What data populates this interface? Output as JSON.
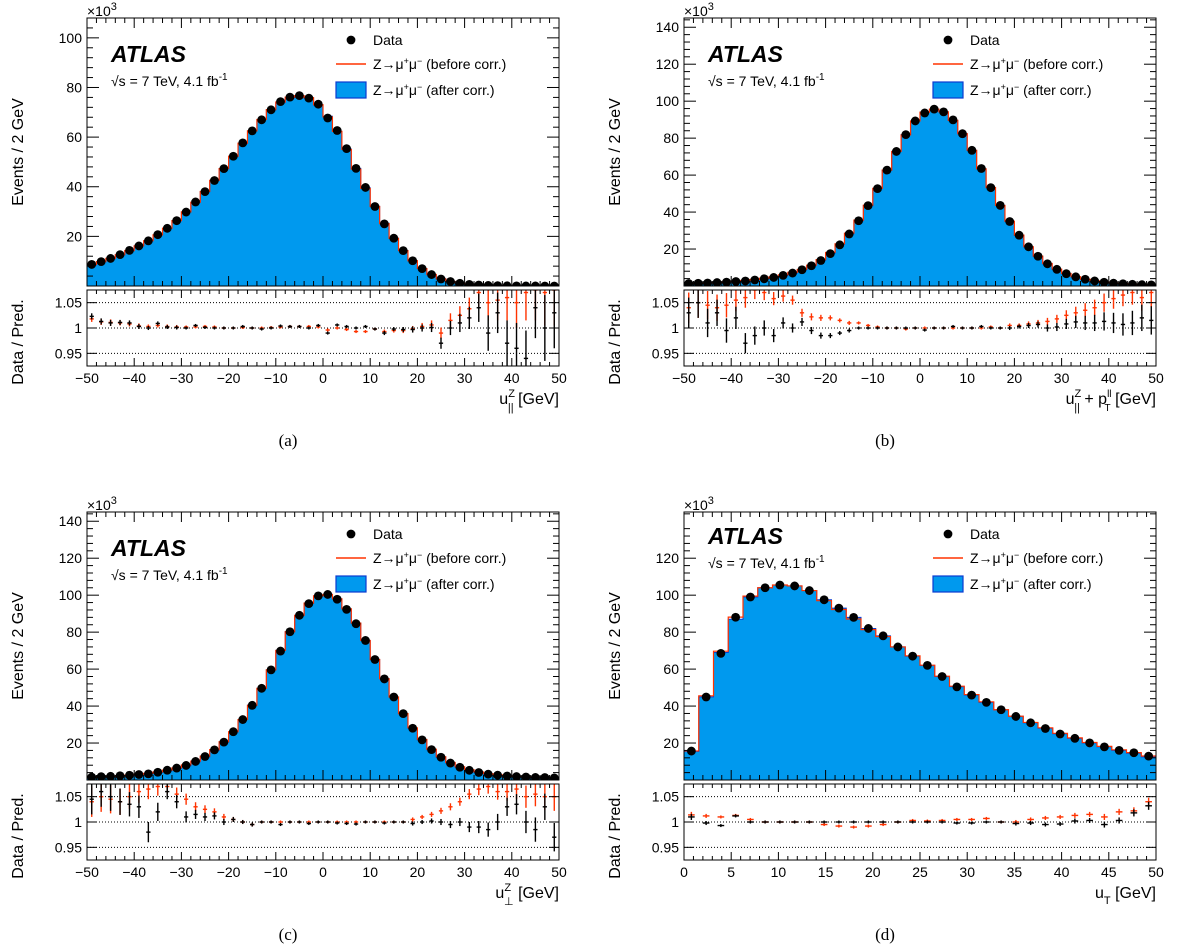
{
  "colors": {
    "fill": "#0099ee",
    "fill_edge": "#0b3bd0",
    "before_line": "#ff3300",
    "before_ratio": "#ff3300",
    "data": "#000000"
  },
  "common": {
    "multiplier_base": "×10",
    "multiplier_exp": "3",
    "ylabel": "Events / 2 GeV",
    "ratio_ylabel": "Data / Pred.",
    "atlas": "ATLAS",
    "sqrt": "√s",
    "energy": " = 7 TeV, 4.1 fb",
    "lumi_exp": "-1",
    "legend": {
      "data": "Data",
      "z_mumu": "Z→μ",
      "sup_plus": "+",
      "mu": "μ",
      "sup_minus": "−",
      "before": " (before corr.)",
      "after": " (after corr.)"
    },
    "ratio_ticks": [
      "1.05",
      "1",
      "0.95"
    ]
  },
  "chart_data": [
    {
      "type": "bar",
      "panel": "a",
      "caption": "(a)",
      "xlabel_main": "u",
      "xlabel_sup": "Z",
      "xlabel_sub": "||",
      "xlabel_unit": " [GeV]",
      "xlim": [
        -50,
        50
      ],
      "ylim": [
        0,
        108
      ],
      "yticks": [
        "20",
        "40",
        "60",
        "80",
        "100"
      ],
      "xticks": [
        "−50",
        "−40",
        "−30",
        "−20",
        "−10",
        "0",
        "10",
        "20",
        "30",
        "40",
        "50"
      ],
      "bin_edges_start": -50,
      "bin_width": 2,
      "events_k": [
        8.5,
        9.7,
        11,
        12.5,
        14.2,
        16.1,
        18.2,
        20.5,
        23.2,
        26.3,
        29.8,
        33.7,
        38,
        42.5,
        47.3,
        52.3,
        57.5,
        62.5,
        67.1,
        71,
        74,
        75.9,
        76.5,
        75.7,
        72.9,
        68.4,
        62.3,
        55.2,
        47.4,
        39.6,
        32.1,
        25.3,
        19.3,
        14.3,
        10.2,
        7,
        4.6,
        2.9,
        1.8,
        1.1,
        0.65,
        0.38,
        0.22,
        0.13,
        0.08,
        0.05,
        0.03,
        0.02,
        0.01,
        0.01
      ],
      "ratio_data": [
        1.023,
        1.013,
        1.01,
        1.011,
        1.01,
        1.003,
        1.0,
        1.009,
        1.002,
        1.001,
        1.0,
        1.005,
        1.001,
        1.0,
        1.0,
        1.0,
        1.003,
        1.0,
        0.998,
        1.0,
        1.004,
        1.003,
        1.003,
        1.0,
        1.005,
        0.99,
        1.006,
        1.003,
        1.0,
        1.003,
        0.998,
        0.99,
        0.998,
        0.997,
        0.997,
        1.0,
        1.001,
        0.97,
        1.0,
        1.01,
        1.02,
        1.04,
        0.99,
        1.03,
        0.97,
        0.96,
        0.94,
        1.04,
        1.0,
        1.03
      ],
      "ratio_before": [
        1.018,
        1.012,
        1.011,
        1.01,
        1.008,
        1.004,
        1.003,
        1.005,
        1.003,
        1.002,
        1.002,
        1.002,
        1.003,
        1.002,
        1.0,
        1.0,
        1.001,
        1.0,
        1.0,
        1.001,
        1.002,
        1.003,
        1.003,
        1.003,
        1.002,
        0.996,
        1.0,
        0.997,
        0.993,
        0.993,
        0.998,
        0.993,
        0.995,
        0.995,
        0.998,
        1.003,
        1.006,
        0.99,
        1.015,
        1.025,
        1.038,
        1.07,
        1.05,
        1.055,
        1.06,
        1.05,
        1.07,
        1.075,
        1.07,
        1.075
      ],
      "ratio_err": [
        0.006,
        0.006,
        0.006,
        0.005,
        0.005,
        0.005,
        0.004,
        0.004,
        0.004,
        0.004,
        0.003,
        0.003,
        0.003,
        0.003,
        0.003,
        0.003,
        0.003,
        0.003,
        0.003,
        0.003,
        0.003,
        0.003,
        0.003,
        0.003,
        0.003,
        0.003,
        0.003,
        0.003,
        0.003,
        0.003,
        0.003,
        0.004,
        0.004,
        0.005,
        0.006,
        0.007,
        0.009,
        0.011,
        0.014,
        0.018,
        0.022,
        0.028,
        0.035,
        0.04,
        0.045,
        0.05,
        0.055,
        0.06,
        0.065,
        0.07
      ]
    },
    {
      "type": "bar",
      "panel": "b",
      "caption": "(b)",
      "xlabel_main": "u",
      "xlabel_sup": "Z",
      "xlabel_sub": "||",
      "xlabel_extra": " + p",
      "xlabel_extra_sup": "ll",
      "xlabel_extra_sub": "T",
      "xlabel_unit": "  [GeV]",
      "xlim": [
        -50,
        50
      ],
      "ylim": [
        0,
        145
      ],
      "yticks": [
        "20",
        "40",
        "60",
        "80",
        "100",
        "120",
        "140"
      ],
      "xticks": [
        "−50",
        "−40",
        "−30",
        "−20",
        "−10",
        "0",
        "10",
        "20",
        "30",
        "40",
        "50"
      ],
      "bin_edges_start": -50,
      "bin_width": 2,
      "events_k": [
        1.3,
        1.4,
        1.6,
        1.8,
        2.1,
        2.4,
        2.8,
        3.3,
        3.9,
        4.7,
        5.7,
        7.0,
        8.7,
        11.0,
        14.0,
        17.8,
        22.5,
        28.3,
        35.3,
        43.5,
        52.7,
        62.7,
        72.8,
        81.9,
        89.3,
        94.0,
        95.7,
        94.2,
        89.6,
        82.4,
        73.4,
        63.4,
        53.2,
        43.6,
        34.9,
        27.4,
        21.1,
        16.0,
        12.0,
        9.0,
        6.6,
        4.9,
        3.6,
        2.7,
        2.0,
        1.5,
        1.2,
        0.9,
        0.7,
        0.6
      ],
      "ratio_data": [
        1.03,
        1.05,
        1.01,
        1.03,
        0.995,
        1.02,
        0.97,
        0.985,
        1.0,
        0.985,
        1.01,
        1.0,
        1.012,
        0.995,
        0.985,
        0.985,
        0.99,
        0.995,
        1.0,
        1.0,
        1.0,
        1.0,
        1.0,
        1.0,
        1.0,
        0.996,
        1.0,
        1.0,
        1.003,
        1.0,
        1.0,
        1.003,
        1.0,
        1.0,
        1.0,
        1.003,
        1.005,
        1.007,
        1.0,
        1.002,
        1.008,
        1.012,
        1.01,
        1.01,
        1.013,
        1.01,
        1.007,
        1.01,
        1.02,
        1.015
      ],
      "ratio_before": [
        1.04,
        1.05,
        1.045,
        1.04,
        1.045,
        1.055,
        1.06,
        1.075,
        1.07,
        1.058,
        1.063,
        1.055,
        1.03,
        1.022,
        1.02,
        1.02,
        1.015,
        1.01,
        1.01,
        1.005,
        1.002,
        1.0,
        1.0,
        0.998,
        1.0,
        1.0,
        1.0,
        1.0,
        1.0,
        1.0,
        1.0,
        1.0,
        1.002,
        1.0,
        1.005,
        1.005,
        1.008,
        1.01,
        1.013,
        1.018,
        1.025,
        1.03,
        1.035,
        1.04,
        1.05,
        1.058,
        1.065,
        1.07,
        1.06,
        1.07
      ],
      "ratio_err": [
        0.03,
        0.03,
        0.028,
        0.026,
        0.024,
        0.022,
        0.02,
        0.018,
        0.015,
        0.013,
        0.011,
        0.009,
        0.008,
        0.007,
        0.006,
        0.005,
        0.004,
        0.004,
        0.003,
        0.003,
        0.003,
        0.003,
        0.003,
        0.003,
        0.003,
        0.003,
        0.003,
        0.003,
        0.003,
        0.003,
        0.003,
        0.003,
        0.003,
        0.003,
        0.004,
        0.004,
        0.005,
        0.006,
        0.007,
        0.008,
        0.01,
        0.012,
        0.014,
        0.016,
        0.018,
        0.02,
        0.022,
        0.024,
        0.026,
        0.028
      ]
    },
    {
      "type": "bar",
      "panel": "c",
      "caption": "(c)",
      "xlabel_main": "u",
      "xlabel_sup": "Z",
      "xlabel_sub": "⊥",
      "xlabel_unit": "  [GeV]",
      "xlim": [
        -50,
        50
      ],
      "ylim": [
        0,
        145
      ],
      "yticks": [
        "20",
        "40",
        "60",
        "80",
        "100",
        "120",
        "140"
      ],
      "xticks": [
        "−50",
        "−40",
        "−30",
        "−20",
        "−10",
        "0",
        "10",
        "20",
        "30",
        "40",
        "50"
      ],
      "bin_edges_start": -50,
      "bin_width": 2,
      "events_k": [
        1.5,
        1.7,
        1.9,
        2.2,
        2.5,
        2.9,
        3.4,
        4.1,
        5.0,
        6.2,
        7.8,
        9.9,
        12.6,
        16.1,
        20.5,
        26.0,
        32.7,
        40.6,
        49.6,
        59.6,
        70.1,
        80.2,
        89.1,
        95.7,
        99.6,
        100.4,
        98.0,
        92.6,
        84.9,
        75.5,
        65.2,
        54.8,
        44.9,
        35.9,
        28.1,
        21.7,
        16.4,
        12.3,
        9.2,
        6.9,
        5.3,
        4.1,
        3.2,
        2.6,
        2.1,
        1.8,
        1.6,
        1.4,
        1.3,
        1.2
      ],
      "ratio_data": [
        1.045,
        1.06,
        1.05,
        1.04,
        1.035,
        1.03,
        0.98,
        1.02,
        1.06,
        1.04,
        1.01,
        1.015,
        1.01,
        1.012,
        1.0,
        1.005,
        1.0,
        0.995,
        1.0,
        1.0,
        0.995,
        1.0,
        1.0,
        0.997,
        1.0,
        1.0,
        0.998,
        0.997,
        0.996,
        1.0,
        1.0,
        0.998,
        1.0,
        1.0,
        0.997,
        1.0,
        1.002,
        1.0,
        0.995,
        1.0,
        0.99,
        0.99,
        0.985,
        1.0,
        1.03,
        1.035,
        1.0,
        0.985,
        1.03,
        0.97
      ],
      "ratio_before": [
        1.04,
        1.05,
        1.045,
        1.04,
        1.05,
        1.06,
        1.065,
        1.07,
        1.07,
        1.055,
        1.045,
        1.03,
        1.025,
        1.02,
        1.01,
        1.005,
        1.0,
        0.995,
        1.0,
        1.0,
        1.0,
        1.0,
        1.0,
        1.0,
        1.0,
        1.0,
        1.0,
        1.0,
        1.0,
        1.0,
        1.0,
        1.0,
        1.0,
        1.0,
        1.005,
        1.01,
        1.015,
        1.022,
        1.03,
        1.04,
        1.055,
        1.065,
        1.07,
        1.06,
        1.06,
        1.065,
        1.05,
        1.055,
        1.05,
        1.05
      ],
      "ratio_err": [
        0.03,
        0.03,
        0.028,
        0.026,
        0.024,
        0.022,
        0.02,
        0.018,
        0.015,
        0.013,
        0.011,
        0.009,
        0.008,
        0.007,
        0.006,
        0.005,
        0.004,
        0.004,
        0.003,
        0.003,
        0.003,
        0.003,
        0.003,
        0.003,
        0.003,
        0.003,
        0.003,
        0.003,
        0.003,
        0.003,
        0.003,
        0.003,
        0.003,
        0.003,
        0.004,
        0.004,
        0.005,
        0.006,
        0.007,
        0.008,
        0.01,
        0.012,
        0.014,
        0.016,
        0.018,
        0.02,
        0.022,
        0.024,
        0.026,
        0.028
      ]
    },
    {
      "type": "bar",
      "panel": "d",
      "caption": "(d)",
      "xlabel_main": "u",
      "xlabel_sub": "T",
      "xlabel_unit": " [GeV]",
      "xlim": [
        0,
        50
      ],
      "ylim": [
        0,
        145
      ],
      "yticks": [
        "20",
        "40",
        "60",
        "80",
        "100",
        "120"
      ],
      "xticks": [
        "0",
        "5",
        "10",
        "15",
        "20",
        "25",
        "30",
        "35",
        "40",
        "45",
        "50"
      ],
      "bin_edges_start": 0,
      "bin_width": 1.5625,
      "events_k": [
        15.5,
        45,
        69,
        87,
        99,
        104,
        105.5,
        105,
        102.5,
        97.5,
        93,
        88,
        82,
        78,
        72,
        67,
        62,
        56,
        50.5,
        46,
        42,
        38,
        34.5,
        31,
        28,
        25,
        22.5,
        20,
        18,
        16,
        14.5,
        12.5
      ],
      "ratio_data": [
        1.01,
        0.998,
        0.993,
        1.012,
        1.0,
        1.0,
        1.0,
        1.0,
        1.0,
        1.0,
        1.0,
        1.0,
        1.0,
        1.0,
        1.0,
        1.0,
        1.0,
        1.0,
        0.998,
        0.998,
        1.0,
        1.0,
        0.997,
        0.998,
        0.995,
        0.996,
        1.002,
        1.003,
        0.995,
        1.003,
        1.018,
        1.032
      ],
      "ratio_before": [
        1.014,
        1.012,
        1.01,
        1.013,
        1.005,
        1.0,
        1.0,
        1.0,
        1.0,
        0.995,
        0.992,
        0.99,
        0.992,
        0.995,
        1.0,
        1.003,
        1.002,
        1.003,
        1.005,
        1.005,
        1.007,
        1.0,
        1.0,
        1.005,
        1.008,
        1.01,
        1.013,
        1.015,
        1.01,
        1.02,
        1.022,
        1.04
      ],
      "ratio_err": [
        0.006,
        0.004,
        0.003,
        0.003,
        0.003,
        0.003,
        0.003,
        0.003,
        0.003,
        0.003,
        0.003,
        0.003,
        0.003,
        0.003,
        0.003,
        0.003,
        0.003,
        0.003,
        0.003,
        0.003,
        0.003,
        0.003,
        0.004,
        0.004,
        0.004,
        0.004,
        0.005,
        0.005,
        0.006,
        0.006,
        0.007,
        0.008
      ]
    }
  ]
}
